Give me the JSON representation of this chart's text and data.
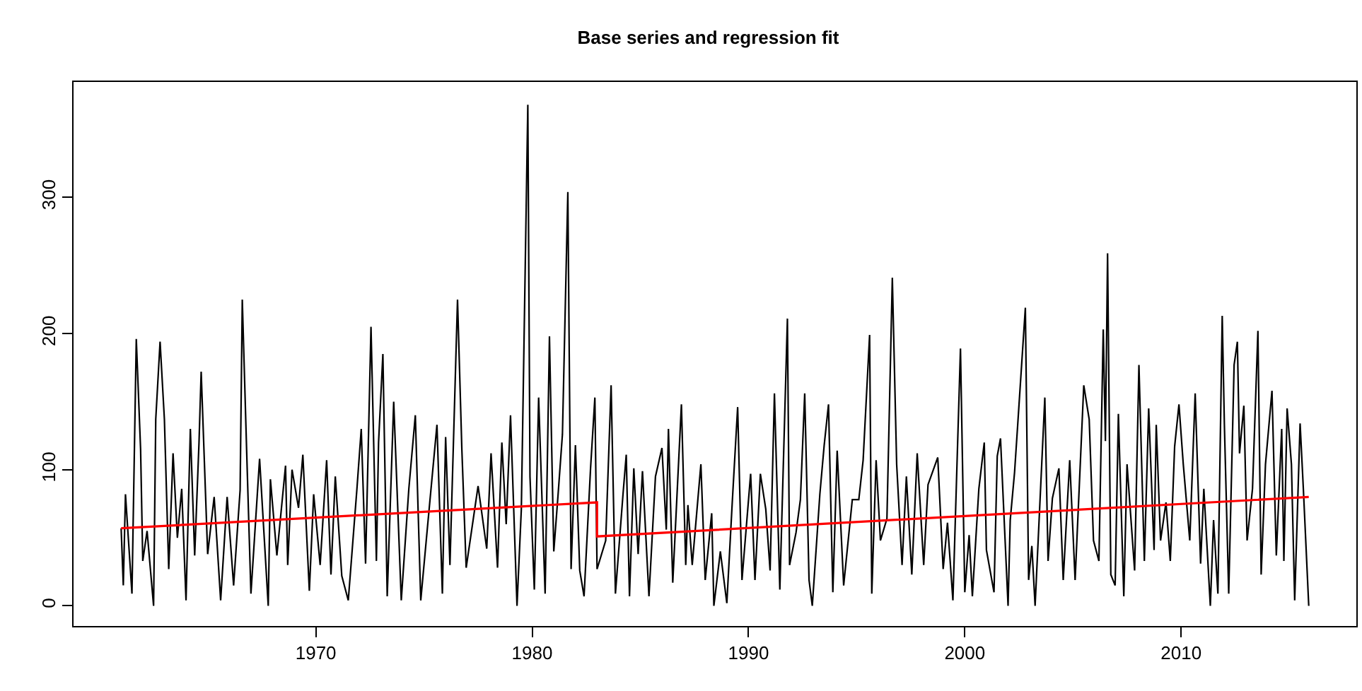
{
  "chart_data": {
    "type": "line",
    "title": "Base series and regression fit",
    "xlim": [
      1958.8,
      2018.1
    ],
    "ylim": [
      -14.8,
      384.8
    ],
    "xticks": [
      1970,
      1980,
      1990,
      2000,
      2010
    ],
    "yticks": [
      0,
      100,
      200,
      300
    ],
    "series": [
      {
        "color": "#000000",
        "x": [
          1961.0,
          1961.1,
          1961.2,
          1961.5,
          1961.7,
          1961.9,
          1962.0,
          1962.2,
          1962.5,
          1962.6,
          1962.8,
          1963.0,
          1963.2,
          1963.4,
          1963.6,
          1963.8,
          1964.0,
          1964.2,
          1964.4,
          1964.6,
          1964.7,
          1965.0,
          1965.3,
          1965.6,
          1965.9,
          1966.2,
          1966.5,
          1966.6,
          1966.8,
          1967.0,
          1967.4,
          1967.8,
          1967.9,
          1968.2,
          1968.6,
          1968.7,
          1968.9,
          1969.2,
          1969.4,
          1969.7,
          1969.9,
          1970.2,
          1970.5,
          1970.7,
          1970.9,
          1971.2,
          1971.5,
          1971.9,
          1972.1,
          1972.3,
          1972.55,
          1972.8,
          1972.9,
          1973.1,
          1973.3,
          1973.6,
          1973.95,
          1974.3,
          1974.6,
          1974.85,
          1975.15,
          1975.6,
          1975.85,
          1976.0,
          1976.2,
          1976.55,
          1976.75,
          1976.95,
          1977.5,
          1977.9,
          1978.1,
          1978.4,
          1978.6,
          1978.8,
          1979.0,
          1979.3,
          1979.5,
          1979.8,
          1979.9,
          1980.1,
          1980.3,
          1980.6,
          1980.8,
          1981.0,
          1981.2,
          1981.4,
          1981.65,
          1981.8,
          1982.0,
          1982.2,
          1982.4,
          1982.7,
          1982.9,
          1983.0,
          1983.4,
          1983.65,
          1983.85,
          1984.2,
          1984.35,
          1984.5,
          1984.7,
          1984.9,
          1985.1,
          1985.4,
          1985.7,
          1986.0,
          1986.2,
          1986.3,
          1986.5,
          1986.9,
          1987.1,
          1987.2,
          1987.4,
          1987.8,
          1988.0,
          1988.3,
          1988.4,
          1988.7,
          1989.0,
          1989.25,
          1989.5,
          1989.7,
          1990.1,
          1990.3,
          1990.55,
          1990.8,
          1991.0,
          1991.2,
          1991.45,
          1991.8,
          1991.9,
          1992.2,
          1992.4,
          1992.6,
          1992.8,
          1992.95,
          1993.3,
          1993.5,
          1993.7,
          1993.9,
          1994.1,
          1994.4,
          1994.8,
          1995.1,
          1995.3,
          1995.6,
          1995.7,
          1995.9,
          1996.1,
          1996.4,
          1996.65,
          1996.85,
          1997.1,
          1997.3,
          1997.55,
          1997.8,
          1998.1,
          1998.3,
          1998.75,
          1999.0,
          1999.2,
          1999.45,
          1999.8,
          2000.0,
          2000.2,
          2000.35,
          2000.65,
          2000.9,
          2001.0,
          2001.35,
          2001.5,
          2001.65,
          2002.0,
          2002.1,
          2002.3,
          2002.45,
          2002.8,
          2002.95,
          2003.1,
          2003.25,
          2003.7,
          2003.85,
          2004.05,
          2004.35,
          2004.55,
          2004.85,
          2005.1,
          2005.5,
          2005.75,
          2005.95,
          2006.2,
          2006.4,
          2006.5,
          2006.6,
          2006.75,
          2006.95,
          2007.1,
          2007.35,
          2007.5,
          2007.85,
          2008.05,
          2008.3,
          2008.5,
          2008.75,
          2008.85,
          2009.05,
          2009.3,
          2009.5,
          2009.7,
          2009.9,
          2010.1,
          2010.4,
          2010.65,
          2010.9,
          2011.05,
          2011.35,
          2011.5,
          2011.7,
          2011.9,
          2012.0,
          2012.2,
          2012.45,
          2012.6,
          2012.7,
          2012.9,
          2013.05,
          2013.3,
          2013.55,
          2013.7,
          2013.9,
          2014.2,
          2014.4,
          2014.65,
          2014.75,
          2014.9,
          2015.1,
          2015.25,
          2015.5,
          2015.65,
          2015.9
        ],
        "values": [
          57,
          15,
          82,
          9,
          196,
          115,
          33,
          55,
          0,
          137,
          194,
          137,
          27,
          112,
          50,
          86,
          4,
          130,
          37,
          120,
          172,
          38,
          80,
          4,
          80,
          15,
          85,
          225,
          115,
          9,
          108,
          0,
          93,
          37,
          103,
          30,
          100,
          72,
          111,
          11,
          82,
          30,
          107,
          23,
          95,
          22,
          4,
          86,
          130,
          31,
          205,
          33,
          120,
          185,
          7,
          150,
          4,
          86,
          140,
          4,
          56,
          133,
          9,
          124,
          30,
          225,
          115,
          28,
          88,
          42,
          112,
          28,
          120,
          60,
          140,
          0,
          71,
          368,
          95,
          12,
          153,
          9,
          198,
          40,
          82,
          126,
          304,
          27,
          118,
          26,
          7,
          101,
          153,
          27,
          48,
          162,
          9,
          82,
          111,
          7,
          101,
          38,
          99,
          7,
          95,
          116,
          56,
          130,
          17,
          148,
          30,
          74,
          30,
          104,
          19,
          68,
          0,
          40,
          2,
          76,
          146,
          19,
          97,
          19,
          97,
          71,
          26,
          156,
          12,
          211,
          30,
          54,
          78,
          156,
          19,
          0,
          82,
          118,
          148,
          10,
          114,
          15,
          78,
          78,
          107,
          199,
          9,
          107,
          48,
          64,
          241,
          104,
          30,
          95,
          23,
          112,
          30,
          89,
          109,
          27,
          61,
          4,
          189,
          10,
          52,
          7,
          86,
          120,
          41,
          10,
          110,
          123,
          0,
          63,
          98,
          134,
          219,
          19,
          44,
          0,
          153,
          33,
          79,
          101,
          19,
          107,
          19,
          162,
          137,
          48,
          33,
          203,
          121,
          259,
          23,
          15,
          141,
          7,
          104,
          26,
          177,
          33,
          145,
          41,
          133,
          48,
          76,
          33,
          117,
          148,
          104,
          48,
          156,
          31,
          86,
          0,
          63,
          9,
          213,
          133,
          9,
          177,
          194,
          112,
          147,
          48,
          86,
          202,
          23,
          104,
          158,
          37,
          130,
          33,
          145,
          104,
          4,
          134,
          86,
          0
        ]
      },
      {
        "color": "#ff0000",
        "x": [
          1961.0,
          1983.0,
          1983.0,
          2015.9
        ],
        "values": [
          57,
          76,
          51,
          80
        ]
      }
    ]
  }
}
